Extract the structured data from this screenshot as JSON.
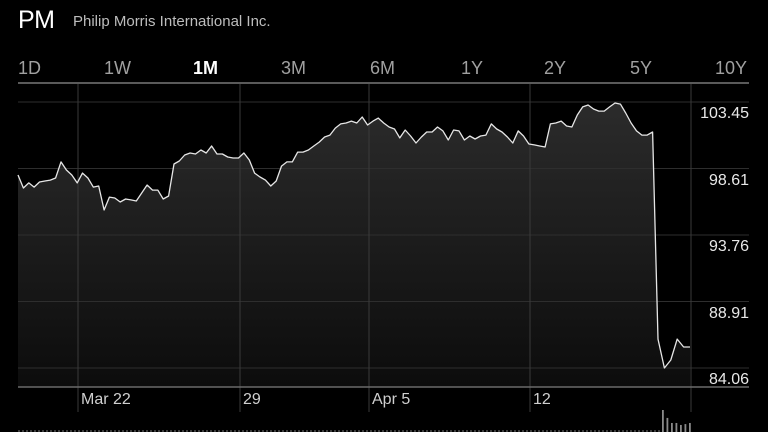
{
  "header": {
    "symbol": "PM",
    "company_name": "Philip Morris International Inc."
  },
  "range_tabs": [
    {
      "label": "1D",
      "active": false
    },
    {
      "label": "1W",
      "active": false
    },
    {
      "label": "1M",
      "active": true
    },
    {
      "label": "3M",
      "active": false
    },
    {
      "label": "6M",
      "active": false
    },
    {
      "label": "1Y",
      "active": false
    },
    {
      "label": "2Y",
      "active": false
    },
    {
      "label": "5Y",
      "active": false
    },
    {
      "label": "10Y",
      "active": false
    }
  ],
  "colors": {
    "background": "#000000",
    "line": "#e6e6e6",
    "fill_top": "#2b2b2b",
    "fill_bottom": "#0c0c0c",
    "grid": "#2e2e2e"
  },
  "chart_data": {
    "type": "area",
    "y_ticks": [
      "103.45",
      "98.61",
      "93.76",
      "88.91",
      "84.06"
    ],
    "ylim": [
      84.06,
      103.45
    ],
    "x_ticks": [
      "Mar 22",
      "29",
      "Apr 5",
      "12"
    ],
    "grid": true,
    "values": [
      98.13,
      97.18,
      97.55,
      97.25,
      97.62,
      97.69,
      97.76,
      97.91,
      99.08,
      98.49,
      98.13,
      97.55,
      98.27,
      97.91,
      97.25,
      97.33,
      95.58,
      96.52,
      96.45,
      96.16,
      96.38,
      96.31,
      96.23,
      96.82,
      97.4,
      97.03,
      97.03,
      96.38,
      96.6,
      98.93,
      99.15,
      99.59,
      99.73,
      99.66,
      99.95,
      99.73,
      100.24,
      99.66,
      99.66,
      99.44,
      99.37,
      99.37,
      99.73,
      99.22,
      98.27,
      97.98,
      97.76,
      97.33,
      97.69,
      98.78,
      99.08,
      99.08,
      99.8,
      99.8,
      99.95,
      100.24,
      100.53,
      100.9,
      101.04,
      101.55,
      101.85,
      101.92,
      102.06,
      101.92,
      102.36,
      101.77,
      102.06,
      102.28,
      101.92,
      101.63,
      101.48,
      100.83,
      101.41,
      100.97,
      100.46,
      100.9,
      101.26,
      101.26,
      101.63,
      101.34,
      100.68,
      101.41,
      101.34,
      100.68,
      100.97,
      100.75,
      100.97,
      101.04,
      101.85,
      101.48,
      101.26,
      100.9,
      100.46,
      101.34,
      100.97,
      100.39,
      100.32,
      100.24,
      100.17,
      101.85,
      101.92,
      102.06,
      101.7,
      101.63,
      102.5,
      103.09,
      103.23,
      102.94,
      102.79,
      102.79,
      103.09,
      103.38,
      103.3,
      102.65,
      101.92,
      101.34,
      101.04,
      101.04,
      101.26,
      86.17,
      84.06,
      84.64,
      86.17,
      85.59,
      85.59
    ],
    "volume_relative": [
      1.0,
      0.64,
      0.41,
      0.41,
      0.32,
      0.36,
      0.41
    ]
  }
}
